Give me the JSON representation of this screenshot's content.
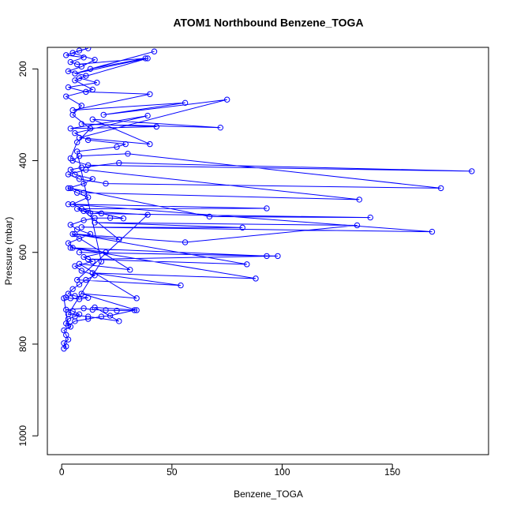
{
  "chart_data": {
    "type": "scatter-line",
    "title": "ATOM1 Northbound Benzene_TOGA",
    "x_label": "Benzene_TOGA",
    "y_label": "Pressure (mbar)",
    "color": "#0000ff",
    "xlim": [
      -6.5,
      193.6
    ],
    "ylim": [
      153,
      1041
    ],
    "y_reversed": true,
    "xticks": [
      0,
      50,
      100,
      150
    ],
    "yticks": [
      200,
      400,
      600,
      800,
      1000
    ],
    "x": [
      1,
      2,
      1,
      3,
      2,
      1,
      4,
      2,
      3,
      6,
      8,
      5,
      2,
      10,
      14,
      20,
      25,
      33,
      22,
      18,
      12,
      6,
      3,
      1,
      2,
      4,
      8,
      12,
      6,
      3,
      5,
      8,
      11,
      15,
      9,
      6,
      14,
      10,
      20,
      5,
      3,
      8,
      13,
      7,
      4,
      10,
      15,
      22,
      28,
      18,
      9,
      5,
      12,
      7,
      3,
      10,
      14,
      6,
      4,
      9,
      26,
      186,
      12,
      5,
      8,
      30,
      172,
      20,
      8,
      3,
      11,
      135,
      10,
      4,
      67,
      140,
      13,
      7,
      93,
      3,
      168,
      9,
      82,
      15,
      134,
      56,
      6,
      84,
      12,
      98,
      8,
      93,
      4,
      88,
      14,
      54,
      7,
      39,
      10,
      26,
      5,
      31,
      8,
      34,
      9,
      34,
      15,
      26,
      12,
      3,
      18,
      7,
      25,
      29,
      12,
      6,
      39,
      4,
      43,
      9,
      72,
      14,
      40,
      8,
      75,
      19,
      56,
      5,
      40,
      11,
      3,
      16,
      8,
      39,
      6,
      42,
      13,
      38,
      7,
      4,
      10,
      2,
      8,
      12,
      5,
      15,
      9,
      3,
      11,
      6,
      14,
      2,
      9,
      5,
      13,
      7,
      4
    ],
    "values": [
      810,
      805,
      798,
      790,
      780,
      770,
      762,
      755,
      745,
      740,
      735,
      728,
      725,
      722,
      725,
      726,
      727,
      726,
      738,
      740,
      745,
      750,
      760,
      700,
      698,
      700,
      702,
      699,
      695,
      690,
      680,
      670,
      660,
      650,
      640,
      630,
      620,
      610,
      600,
      590,
      580,
      570,
      560,
      550,
      540,
      530,
      525,
      525,
      526,
      515,
      505,
      495,
      480,
      470,
      460,
      450,
      440,
      430,
      420,
      415,
      405,
      423,
      410,
      400,
      390,
      385,
      460,
      450,
      440,
      430,
      420,
      485,
      470,
      460,
      522,
      524,
      515,
      505,
      504,
      495,
      555,
      545,
      546,
      535,
      541,
      578,
      560,
      626,
      615,
      608,
      600,
      608,
      590,
      657,
      645,
      672,
      660,
      518,
      510,
      572,
      560,
      638,
      625,
      700,
      690,
      726,
      720,
      750,
      740,
      735,
      620,
      380,
      370,
      364,
      355,
      340,
      302,
      330,
      326,
      320,
      328,
      310,
      364,
      350,
      267,
      300,
      274,
      290,
      255,
      250,
      240,
      230,
      220,
      177,
      210,
      162,
      200,
      177,
      190,
      185,
      175,
      170,
      160,
      155,
      165,
      180,
      195,
      205,
      215,
      225,
      245,
      260,
      280,
      300,
      330,
      360,
      395
    ]
  }
}
